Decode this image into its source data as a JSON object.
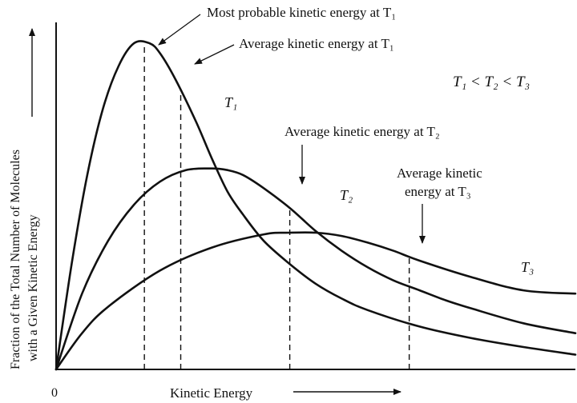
{
  "chart_data": {
    "type": "line",
    "xlabel": "Kinetic Energy",
    "ylabel_line1": "Fraction of the Total Number of Molecules",
    "ylabel_line2": "with a Given Kinetic Energy",
    "origin_label": "0",
    "relation": "T₁ < T₂ < T₃",
    "xlim": [
      0,
      10
    ],
    "ylim": [
      0,
      10
    ],
    "series": [
      {
        "name": "T₁",
        "x": [
          0.0,
          0.3,
          0.6,
          0.9,
          1.2,
          1.5,
          1.8,
          2.0,
          2.3,
          2.7,
          3.0,
          3.3,
          3.6,
          4.0,
          4.5,
          5.0,
          5.5,
          6.0,
          7.0,
          8.0,
          9.0,
          10.0
        ],
        "y": [
          0.0,
          3.2,
          5.9,
          7.9,
          9.2,
          9.9,
          9.9,
          9.6,
          8.8,
          7.5,
          6.4,
          5.4,
          4.7,
          3.9,
          3.2,
          2.6,
          2.15,
          1.8,
          1.3,
          0.95,
          0.68,
          0.45
        ]
      },
      {
        "name": "T₂",
        "x": [
          0.0,
          0.5,
          1.0,
          1.5,
          2.0,
          2.5,
          3.0,
          3.3,
          3.6,
          4.0,
          4.5,
          5.0,
          5.5,
          6.0,
          6.5,
          7.0,
          7.5,
          8.0,
          9.0,
          10.0
        ],
        "y": [
          0.0,
          2.3,
          3.9,
          5.0,
          5.7,
          6.05,
          6.1,
          6.05,
          5.9,
          5.5,
          4.9,
          4.2,
          3.6,
          3.1,
          2.7,
          2.4,
          2.1,
          1.85,
          1.4,
          1.1
        ]
      },
      {
        "name": "T₃",
        "x": [
          0.0,
          0.5,
          1.0,
          2.0,
          3.0,
          4.0,
          4.5,
          5.0,
          5.5,
          6.0,
          6.5,
          7.0,
          8.0,
          9.0,
          10.0
        ],
        "y": [
          0.0,
          1.1,
          1.9,
          3.0,
          3.7,
          4.1,
          4.15,
          4.15,
          4.05,
          3.85,
          3.6,
          3.3,
          2.8,
          2.4,
          2.3
        ]
      }
    ],
    "markers": [
      {
        "label": "Most probable  kinetic energy at T₁",
        "x": 1.7
      },
      {
        "label": "Average kinetic energy at T₁",
        "x": 2.4
      },
      {
        "label": "Average kinetic energy at T₂",
        "x": 4.5
      },
      {
        "label_line1": "Average kinetic",
        "label_line2": "energy at T₃",
        "x": 6.8
      }
    ]
  }
}
